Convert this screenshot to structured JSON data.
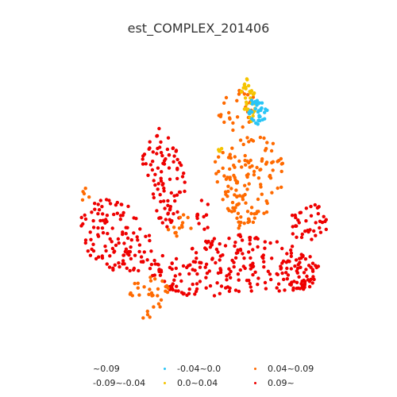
{
  "title": "est_COMPLEX_201406",
  "legend": {
    "entries": [
      {
        "label": "~0.09",
        "color": "",
        "row": 0,
        "col": 0
      },
      {
        "label": "-0.09~-0.04",
        "color": "",
        "row": 1,
        "col": 0
      },
      {
        "label": "-0.04~0.0",
        "color": "#29c5f6",
        "row": 0,
        "col": 1
      },
      {
        "label": "0.0~0.04",
        "color": "#f5c400",
        "row": 1,
        "col": 1
      },
      {
        "label": "0.04~0.09",
        "color": "#ff6a00",
        "row": 0,
        "col": 2
      },
      {
        "label": "0.09~",
        "color": "#ee0000",
        "row": 1,
        "col": 2
      }
    ]
  },
  "map_data": {
    "type": "scatter",
    "axes_visible": false,
    "grid": false,
    "legend_placement": "bottom",
    "category_colors": {
      "cyan": "#29c5f6",
      "yellow": "#f5c400",
      "orange": "#ff6a00",
      "red": "#ee0000"
    }
  }
}
